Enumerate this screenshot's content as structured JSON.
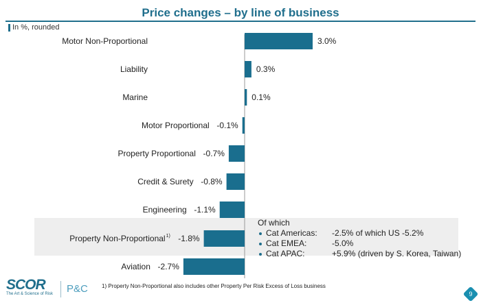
{
  "title": "Price changes – by line of business",
  "unit_note": "In %, rounded",
  "chart_data": {
    "type": "bar",
    "orientation": "horizontal",
    "categories": [
      "Motor Non-Proportional",
      "Liability",
      "Marine",
      "Motor Proportional",
      "Property Proportional",
      "Credit & Surety",
      "Engineering",
      "Property Non-Proportional",
      "Aviation"
    ],
    "category_superscripts": {
      "Property Non-Proportional": "1)"
    },
    "values": [
      3.0,
      0.3,
      0.1,
      -0.1,
      -0.7,
      -0.8,
      -1.1,
      -1.8,
      -2.7
    ],
    "labels": [
      "3.0%",
      "0.3%",
      "0.1%",
      "-0.1%",
      "-0.7%",
      "-0.8%",
      "-1.1%",
      "-1.8%",
      "-2.7%"
    ],
    "highlighted_category": "Property Non-Proportional",
    "bar_color": "#1a6e8e",
    "grid": false
  },
  "breakdown": {
    "heading": "Of which",
    "items": [
      {
        "key": "Cat Americas:",
        "value": "-2.5% of which US -5.2%"
      },
      {
        "key": "Cat EMEA:",
        "value": "-5.0%"
      },
      {
        "key": "Cat APAC:",
        "value": "+5.9% (driven by S. Korea, Taiwan)"
      }
    ]
  },
  "footer": {
    "logo": "SCOR",
    "tagline": "The Art & Science of Risk",
    "division": "P&C",
    "footnote": "1)   Property Non-Proportional also includes other Property Per Risk Excess of Loss business",
    "page": "9"
  }
}
